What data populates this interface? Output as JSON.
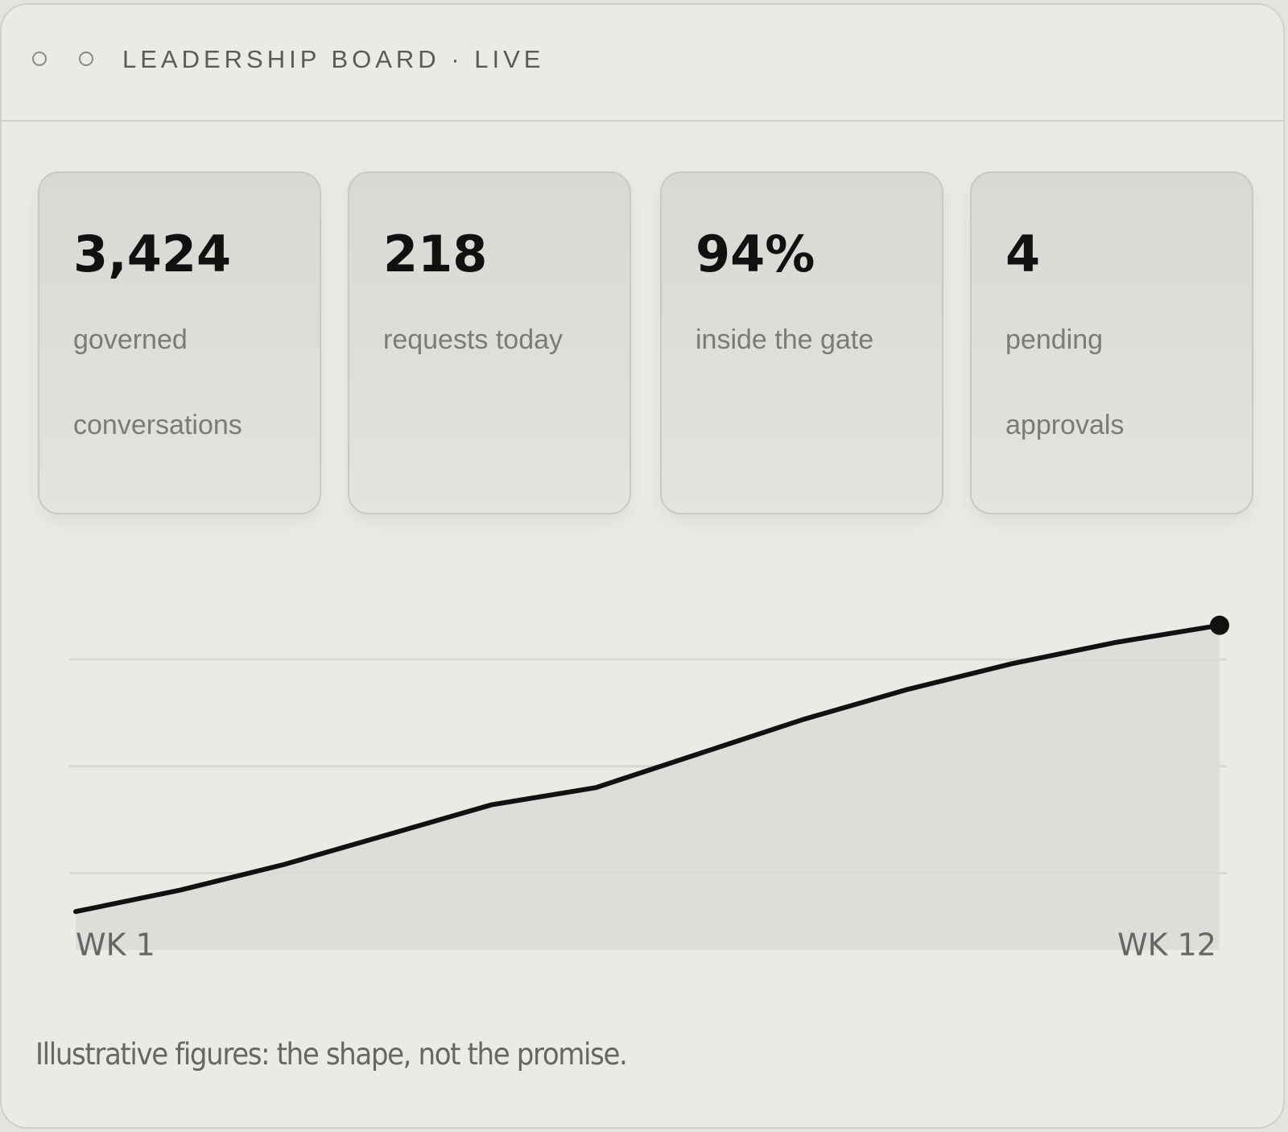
{
  "header": {
    "title": "LEADERSHIP BOARD · LIVE"
  },
  "cards": [
    {
      "value": "3,424",
      "label": "governed conversations"
    },
    {
      "value": "218",
      "label": "requests today"
    },
    {
      "value": "94%",
      "label": "inside the gate"
    },
    {
      "value": "4",
      "label": "pending approvals"
    }
  ],
  "chart_data": {
    "type": "line",
    "categories": [
      "WK 1",
      null,
      null,
      null,
      null,
      null,
      null,
      null,
      null,
      null,
      null,
      "WK 12"
    ],
    "values": [
      16,
      21,
      27,
      34,
      41,
      45,
      53,
      61,
      68,
      74,
      79,
      83
    ],
    "color": "#111111",
    "fill": "#dcdbd7",
    "ylim": [
      7,
      95
    ],
    "yticks": [
      25,
      50,
      75
    ],
    "grid": true
  },
  "footnote": "Illustrative figures: the shape, not the promise."
}
